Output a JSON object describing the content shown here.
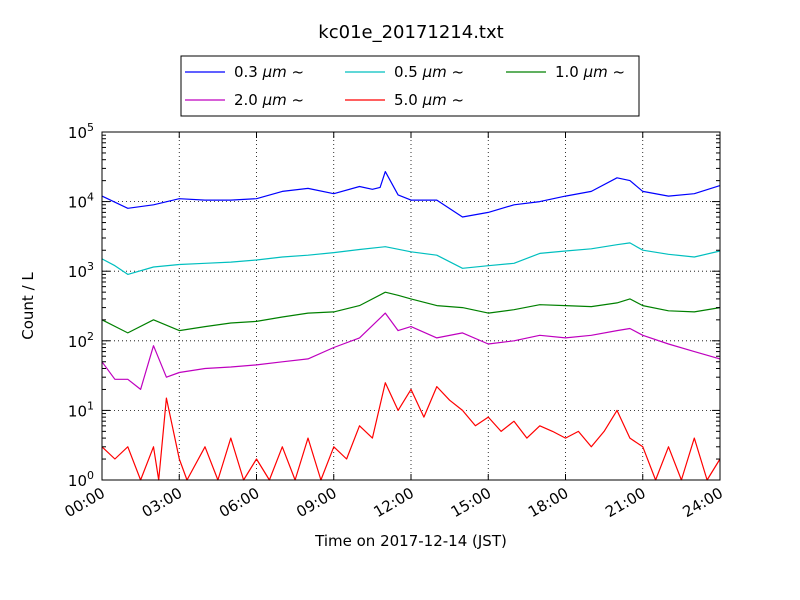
{
  "chart_data": {
    "type": "line",
    "title": "kc01e_20171214.txt",
    "xlabel": "Time on 2017-12-14 (JST)",
    "ylabel": "Count / L",
    "yscale": "log",
    "ylim": [
      1,
      100000
    ],
    "xlim": [
      0,
      24
    ],
    "x_tick_labels": [
      "00:00",
      "03:00",
      "06:00",
      "09:00",
      "12:00",
      "15:00",
      "18:00",
      "21:00",
      "24:00"
    ],
    "y_tick_labels": [
      {
        "base": "10",
        "exp": "0"
      },
      {
        "base": "10",
        "exp": "1"
      },
      {
        "base": "10",
        "exp": "2"
      },
      {
        "base": "10",
        "exp": "3"
      },
      {
        "base": "10",
        "exp": "4"
      },
      {
        "base": "10",
        "exp": "5"
      }
    ],
    "grid": true,
    "legend_position": "top",
    "series": [
      {
        "name": "0.3 μm ~",
        "label_size": "0.3",
        "unit": "μm",
        "suffix": "~",
        "color": "#0000ff",
        "x": [
          0,
          1,
          2,
          3,
          4,
          5,
          6,
          7,
          8,
          9,
          10,
          10.5,
          10.8,
          11,
          11.5,
          12,
          13,
          14,
          15,
          16,
          17,
          18,
          19,
          20,
          20.5,
          21,
          22,
          23,
          24
        ],
        "y": [
          12000,
          8000,
          9000,
          11000,
          10500,
          10500,
          11000,
          14000,
          15500,
          13000,
          16500,
          15000,
          16000,
          27000,
          12500,
          10500,
          10500,
          6000,
          7000,
          9000,
          10000,
          12000,
          14000,
          22000,
          20000,
          14000,
          12000,
          13000,
          17000
        ]
      },
      {
        "name": "0.5 μm ~",
        "label_size": "0.5",
        "unit": "μm",
        "suffix": "~",
        "color": "#00bfbf",
        "x": [
          0,
          0.5,
          1,
          2,
          3,
          4,
          5,
          6,
          7,
          8,
          9,
          10,
          11,
          12,
          13,
          14,
          15,
          16,
          17,
          18,
          19,
          20,
          20.5,
          21,
          22,
          23,
          24
        ],
        "y": [
          1500,
          1200,
          900,
          1150,
          1250,
          1300,
          1350,
          1450,
          1600,
          1700,
          1850,
          2050,
          2250,
          1900,
          1700,
          1100,
          1200,
          1300,
          1800,
          1950,
          2100,
          2400,
          2550,
          2000,
          1750,
          1600,
          1950
        ]
      },
      {
        "name": "1.0 μm ~",
        "label_size": "1.0",
        "unit": "μm",
        "suffix": "~",
        "color": "#008000",
        "x": [
          0,
          1,
          2,
          3,
          4,
          5,
          6,
          7,
          8,
          9,
          10,
          11,
          11.5,
          12,
          13,
          14,
          15,
          16,
          17,
          18,
          19,
          20,
          20.5,
          21,
          22,
          23,
          24
        ],
        "y": [
          200,
          130,
          200,
          140,
          160,
          180,
          190,
          220,
          250,
          260,
          320,
          500,
          450,
          400,
          320,
          300,
          250,
          280,
          330,
          320,
          310,
          350,
          400,
          320,
          270,
          260,
          300
        ]
      },
      {
        "name": "2.0 μm ~",
        "label_size": "2.0",
        "unit": "μm",
        "suffix": "~",
        "color": "#bf00bf",
        "x": [
          0,
          0.5,
          1,
          1.5,
          2,
          2.5,
          3,
          4,
          5,
          6,
          7,
          8,
          9,
          10,
          11,
          11.5,
          12,
          13,
          14,
          15,
          16,
          17,
          18,
          19,
          20,
          20.5,
          21,
          22,
          23,
          24
        ],
        "y": [
          50,
          28,
          28,
          20,
          85,
          30,
          35,
          40,
          42,
          45,
          50,
          55,
          80,
          110,
          250,
          140,
          160,
          110,
          130,
          90,
          100,
          120,
          110,
          120,
          140,
          150,
          120,
          90,
          70,
          55
        ]
      },
      {
        "name": "5.0 μm ~",
        "label_size": "5.0",
        "unit": "μm",
        "suffix": "~",
        "color": "#ff0000",
        "x": [
          0,
          0.5,
          1,
          1.5,
          2,
          2.2,
          2.5,
          3,
          3.3,
          4,
          4.5,
          5,
          5.5,
          6,
          6.5,
          7,
          7.5,
          8,
          8.5,
          9,
          9.5,
          10,
          10.5,
          11,
          11.5,
          12,
          12.5,
          13,
          13.5,
          14,
          14.5,
          15,
          15.5,
          16,
          16.5,
          17,
          17.5,
          18,
          18.5,
          19,
          19.5,
          20,
          20.5,
          21,
          21.5,
          22,
          22.5,
          23,
          23.5,
          24
        ],
        "y": [
          3,
          2,
          3,
          1,
          3,
          1,
          15,
          2,
          1,
          3,
          1,
          4,
          1,
          2,
          1,
          3,
          1,
          4,
          1,
          3,
          2,
          6,
          4,
          25,
          10,
          20,
          8,
          22,
          14,
          10,
          6,
          8,
          5,
          7,
          4,
          6,
          5,
          4,
          5,
          3,
          5,
          10,
          4,
          3,
          1,
          3,
          1,
          4,
          1,
          2
        ]
      }
    ]
  }
}
